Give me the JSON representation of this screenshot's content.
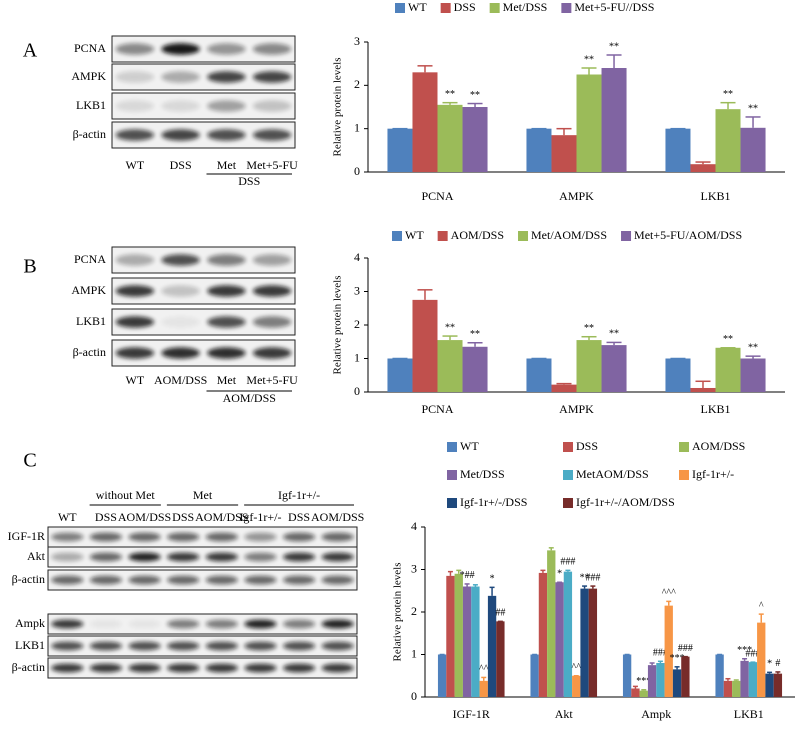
{
  "chart_data": [
    {
      "type": "bar",
      "y_label": "Relative protein levels",
      "categories": [
        "PCNA",
        "AMPK",
        "LKB1"
      ],
      "ylim": [
        0,
        3
      ],
      "yticks": [
        0,
        1,
        2,
        3
      ],
      "series": [
        {
          "name": "WT",
          "color": "#4f81bd",
          "values": [
            1,
            1,
            1
          ],
          "errors": [
            0,
            0,
            0
          ],
          "annotations": [
            null,
            null,
            null
          ]
        },
        {
          "name": "DSS",
          "color": "#c0504d",
          "values": [
            2.3,
            0.85,
            0.18
          ],
          "errors": [
            0.15,
            0.15,
            0.05
          ],
          "annotations": [
            null,
            null,
            null
          ]
        },
        {
          "name": "Met/DSS",
          "color": "#9bbb59",
          "values": [
            1.55,
            2.25,
            1.45
          ],
          "errors": [
            0.05,
            0.15,
            0.15
          ],
          "annotations": [
            "**",
            "**",
            "**"
          ]
        },
        {
          "name": "Met+5-FU//DSS",
          "color": "#8064a2",
          "values": [
            1.5,
            2.4,
            1.02
          ],
          "errors": [
            0.08,
            0.3,
            0.25
          ],
          "annotations": [
            "**",
            "**",
            "**"
          ]
        }
      ]
    },
    {
      "type": "bar",
      "y_label": "Relative protein levels",
      "categories": [
        "PCNA",
        "AMPK",
        "LKB1"
      ],
      "ylim": [
        0,
        4
      ],
      "yticks": [
        0,
        1,
        2,
        3,
        4
      ],
      "series": [
        {
          "name": "WT",
          "color": "#4f81bd",
          "values": [
            1,
            1,
            1
          ],
          "errors": [
            0,
            0,
            0
          ],
          "annotations": [
            null,
            null,
            null
          ]
        },
        {
          "name": "AOM/DSS",
          "color": "#c0504d",
          "values": [
            2.75,
            0.22,
            0.12
          ],
          "errors": [
            0.3,
            0.03,
            0.2
          ],
          "annotations": [
            null,
            null,
            null
          ]
        },
        {
          "name": "Met/AOM/DSS",
          "color": "#9bbb59",
          "values": [
            1.55,
            1.55,
            1.32
          ],
          "errors": [
            0.12,
            0.1,
            0
          ],
          "annotations": [
            "**",
            "**",
            "**"
          ]
        },
        {
          "name": "Met+5-FU/AOM/DSS",
          "color": "#8064a2",
          "values": [
            1.35,
            1.4,
            1.0
          ],
          "errors": [
            0.12,
            0.08,
            0.07
          ],
          "annotations": [
            "**",
            "**",
            "**"
          ]
        }
      ]
    },
    {
      "type": "bar",
      "y_label": "Relative protein levels",
      "categories": [
        "IGF-1R",
        "Akt",
        "Ampk",
        "LKB1"
      ],
      "ylim": [
        0,
        4
      ],
      "yticks": [
        0,
        1,
        2,
        3,
        4
      ],
      "series": [
        {
          "name": "WT",
          "color": "#4f81bd",
          "values": [
            1,
            1,
            1,
            1
          ],
          "errors": [
            0,
            0,
            0,
            0
          ],
          "annotations": [
            null,
            null,
            null,
            null
          ]
        },
        {
          "name": "DSS",
          "color": "#c0504d",
          "values": [
            2.85,
            2.92,
            0.2,
            0.38
          ],
          "errors": [
            0.1,
            0.06,
            0.05,
            0.05
          ],
          "annotations": [
            null,
            null,
            null,
            null
          ]
        },
        {
          "name": "AOM/DSS",
          "color": "#9bbb59",
          "values": [
            2.9,
            3.45,
            0.15,
            0.38
          ],
          "errors": [
            0.08,
            0.06,
            0.02,
            0.02
          ],
          "annotations": [
            null,
            null,
            "***",
            null
          ]
        },
        {
          "name": "Met/DSS",
          "color": "#8064a2",
          "values": [
            2.6,
            2.7,
            0.75,
            0.85
          ],
          "errors": [
            0.06,
            0,
            0.05,
            0.05
          ],
          "annotations": [
            "*##",
            "*",
            null,
            "***"
          ]
        },
        {
          "name": "MetAOM/DSS",
          "color": "#4bacc6",
          "values": [
            2.6,
            2.95,
            0.8,
            0.82
          ],
          "errors": [
            0.04,
            0.03,
            0.04,
            0
          ],
          "annotations": [
            null,
            "###",
            "###",
            "###"
          ]
        },
        {
          "name": "Igf-1r+/-",
          "color": "#f79646",
          "values": [
            0.38,
            0.5,
            2.15,
            1.75
          ],
          "errors": [
            0.08,
            0,
            0.1,
            0.2
          ],
          "annotations": [
            "^^",
            "^^",
            "^^^",
            "^"
          ]
        },
        {
          "name": "Igf-1r+/-/DSS",
          "color": "#1f497d",
          "values": [
            2.38,
            2.55,
            0.65,
            0.55
          ],
          "errors": [
            0.2,
            0.06,
            0.06,
            0.03
          ],
          "annotations": [
            "*",
            "**",
            "***",
            "*"
          ]
        },
        {
          "name": "Igf-1r+/-/AOM/DSS",
          "color": "#772c2a",
          "values": [
            1.78,
            2.55,
            0.95,
            0.55
          ],
          "errors": [
            0,
            0.06,
            0,
            0.04
          ],
          "annotations": [
            "##",
            "###",
            "###",
            "#"
          ]
        }
      ]
    }
  ],
  "panels": [
    {
      "letter": "A",
      "rows": [
        "PCNA",
        "AMPK",
        "LKB1",
        "β-actin"
      ],
      "lanes": [
        "WT",
        "DSS",
        "Met",
        "Met+5-FU"
      ],
      "groups": [
        "DSS"
      ]
    },
    {
      "letter": "B",
      "rows": [
        "PCNA",
        "AMPK",
        "LKB1",
        "β-actin"
      ],
      "lanes": [
        "WT",
        "AOM/DSS",
        "Met",
        "Met+5-FU"
      ],
      "groups": [
        "AOM/DSS"
      ]
    },
    {
      "letter": "C",
      "rows": [
        "IGF-1R",
        "Akt",
        "β-actin",
        "Ampk",
        "LKB1",
        "β-actin"
      ],
      "lanes": [
        "WT",
        "DSS",
        "AOM/DSS",
        "DSS",
        "AOM/DSS",
        "Igf-1r+/-",
        "DSS",
        "AOM/DSS"
      ],
      "groups": [
        "without Met",
        "Met",
        "Igf-1r+/-"
      ]
    }
  ]
}
